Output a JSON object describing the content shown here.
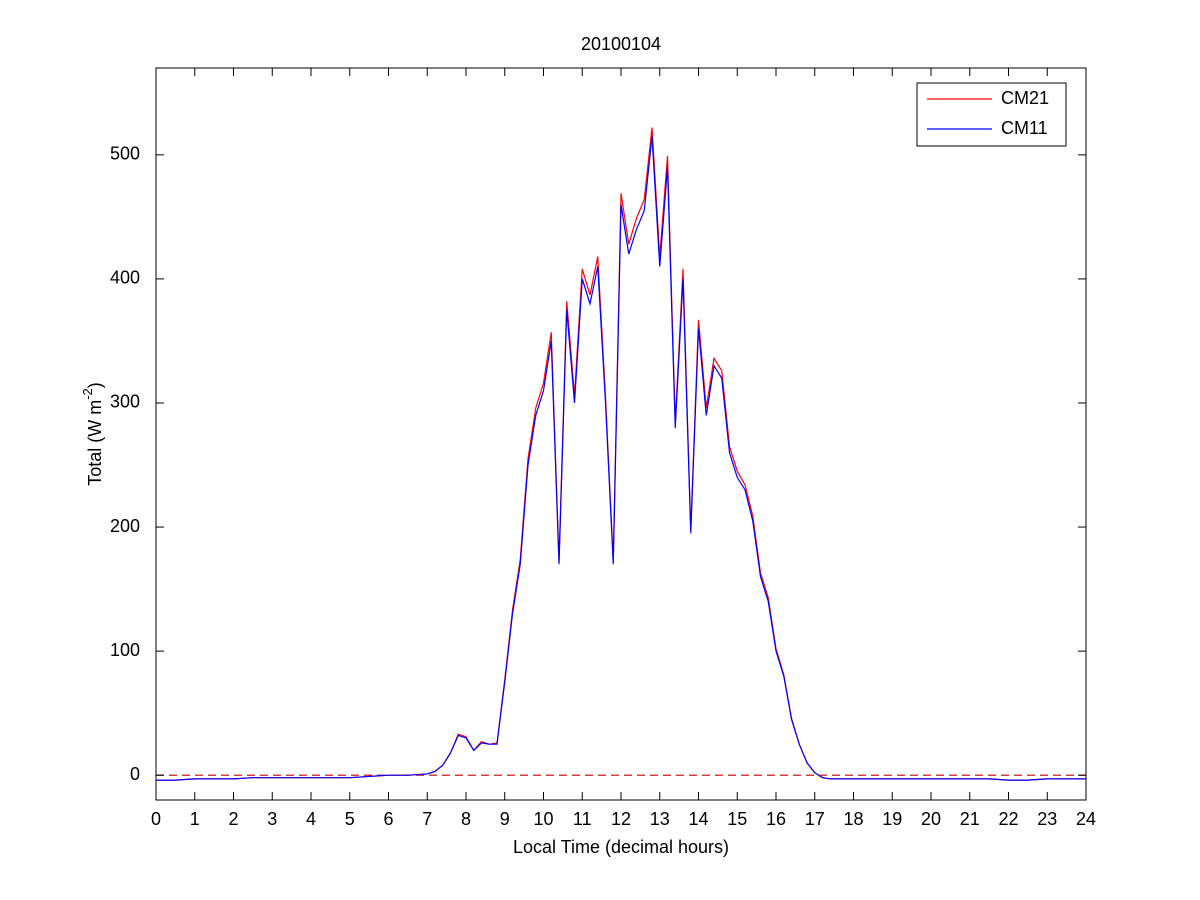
{
  "chart_data": {
    "type": "line",
    "title": "20100104",
    "xlabel": "Local Time (decimal hours)",
    "ylabel": [
      "Total (W m",
      "-2",
      ")"
    ],
    "x": [
      0,
      0.5,
      1,
      1.5,
      2,
      2.5,
      3,
      3.5,
      4,
      4.5,
      5,
      5.5,
      6,
      6.5,
      7.0,
      7.2,
      7.4,
      7.6,
      7.8,
      8.0,
      8.2,
      8.4,
      8.6,
      8.8,
      9.0,
      9.2,
      9.4,
      9.6,
      9.8,
      10.0,
      10.2,
      10.4,
      10.6,
      10.8,
      11.0,
      11.2,
      11.4,
      11.6,
      11.8,
      12.0,
      12.2,
      12.4,
      12.6,
      12.8,
      13.0,
      13.2,
      13.4,
      13.6,
      13.8,
      14.0,
      14.2,
      14.4,
      14.6,
      14.8,
      15.0,
      15.2,
      15.4,
      15.6,
      15.8,
      16.0,
      16.2,
      16.4,
      16.6,
      16.8,
      17.0,
      17.2,
      17.4,
      18,
      18.5,
      19,
      19.5,
      20,
      20.5,
      21,
      21.5,
      22,
      22.5,
      23,
      23.5,
      24
    ],
    "series": [
      {
        "name": "CM21",
        "color": "#ff0000",
        "values": [
          -4,
          -4,
          -3,
          -3,
          -3,
          -2,
          -2,
          -2,
          -2,
          -2,
          -2,
          -1,
          0,
          0,
          1,
          3,
          8,
          18,
          33,
          31,
          20,
          27,
          25,
          26,
          77,
          133,
          174,
          255,
          296,
          316,
          357,
          173,
          382,
          306,
          408,
          387,
          418,
          305,
          173,
          469,
          428,
          449,
          464,
          522,
          418,
          499,
          285,
          408,
          198,
          367,
          296,
          336,
          326,
          265,
          245,
          234,
          209,
          163,
          143,
          102,
          81,
          46,
          25,
          10,
          2,
          -2,
          -3,
          -3,
          -3,
          -3,
          -3,
          -3,
          -3,
          -3,
          -3,
          -4,
          -4,
          -3,
          -3,
          -3
        ]
      },
      {
        "name": "CM11",
        "color": "#0000ff",
        "values": [
          -4,
          -4,
          -3,
          -3,
          -3,
          -2,
          -2,
          -2,
          -2,
          -2,
          -2,
          -1,
          0,
          0,
          1,
          3,
          8,
          18,
          32,
          30,
          20,
          26,
          25,
          25,
          75,
          130,
          170,
          250,
          290,
          310,
          350,
          170,
          375,
          300,
          400,
          380,
          410,
          300,
          170,
          460,
          420,
          440,
          455,
          515,
          410,
          490,
          280,
          400,
          195,
          360,
          290,
          330,
          320,
          260,
          240,
          230,
          205,
          160,
          140,
          100,
          80,
          45,
          25,
          10,
          2,
          -2,
          -3,
          -3,
          -3,
          -3,
          -3,
          -3,
          -3,
          -3,
          -3,
          -4,
          -4,
          -3,
          -3,
          -3
        ]
      }
    ],
    "reference_line": {
      "y": 0,
      "color": "#c00000",
      "style": "dashed"
    },
    "xlim": [
      0,
      24
    ],
    "xticks": [
      0,
      1,
      2,
      3,
      4,
      5,
      6,
      7,
      8,
      9,
      10,
      11,
      12,
      13,
      14,
      15,
      16,
      17,
      18,
      19,
      20,
      21,
      22,
      23,
      24
    ],
    "ylim": [
      -20,
      570
    ],
    "yticks": [
      0,
      100,
      200,
      300,
      400,
      500
    ],
    "legend": "top-right"
  }
}
